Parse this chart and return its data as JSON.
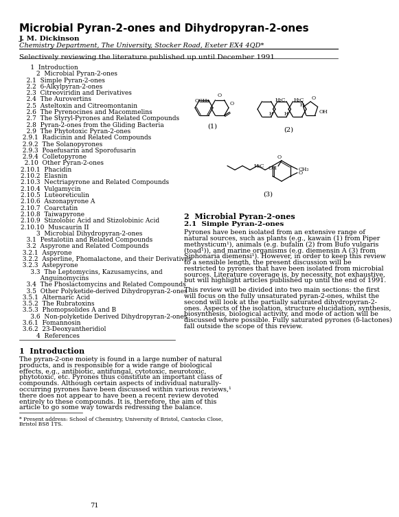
{
  "title": "Microbial Pyran-2-ones and Dihydropyran-2-ones",
  "author": "J. M. Dickinson",
  "affiliation": "Chemistry Department, The University, Stocker Road, Exeter EX4 4QD*",
  "tagline": "Selectively reviewing the literature published up until December 1991",
  "toc": [
    "     1  Introduction",
    "        2  Microbial Pyran-2-ones",
    "   2.1  Simple Pyran-2-ones",
    "   2.2  6-Alkylpyran-2-ones",
    "   2.3  Citreoviridin and Derivatives",
    "   2.4  The Aurovertins",
    "   2.5  Asteltoxin and Citreomontanin",
    "   2.6  The Pyrenocines and Macommelins",
    "   2.7  The Styryl-Pyrones and Related Compounds",
    "   2.8  Pyran-2-ones from the Gliding Bacteria",
    "   2.9  The Phytotoxic Pyran-2-ones",
    " 2.9.1  Radicinin and Related Compounds",
    " 2.9.2  The Solanopyrones",
    " 2.9.3  Poaefusarin and Sporofusarin",
    " 2.9.4  Colletopyrone",
    "  2.10  Other Pyran-2-ones",
    "2.10.1  Phacidin",
    "2.10.2  Elasnin",
    "2.10.3  Nectriapyrone and Related Compounds",
    "2.10.4  Vulgamycin",
    "2.10.5  Luteoreticulin",
    "2.10.6  Aszonapyrone A",
    "2.10.7  Coarctatin",
    "2.10.8  Taiwapyrone",
    "2.10.9  Stizolobic Acid and Stizolobinic Acid",
    "2.10.10  Muscaurin II",
    "        3  Microbial Dihydropyran-2-ones",
    "   3.1  Pestalotiin and Related Compounds",
    "   3.2  Aspyrone and Related Compounds",
    " 3.2.1  Aspyrone",
    " 3.2.2  Asperline, Phomalactone, and their Derivatives",
    " 3.2.3  Astepyrone",
    "     3.3  The Leptomycins, Kazusamycins, and",
    "          Anguinomycins",
    "   3.4  The Phoslactomycins and Related Compounds",
    "   3.5  Other Polyketide-derived Dihydropyran-2-ones",
    " 3.5.1  Alternaric Acid",
    " 3.5.2  The Rubratoxins",
    " 3.5.3  Phomopsolides A and B",
    "     3.6  Non-polyketide Derived Dihydropyran-2-ones",
    " 3.6.1  Fomannosin",
    " 3.6.2  23-Deoxyantheridiol",
    "        4  References"
  ],
  "intro_heading": "1  Introduction",
  "intro_text_lines": [
    "The pyran-2-one moiety is found in a large number of natural",
    "products, and is responsible for a wide range of biological",
    "effects, e.g., antibiotic, antifungal, cytotoxic, neurotoxic,",
    "phytotoxic, etc. Pyrones thus constitute an important class of",
    "compounds. Although certain aspects of individual naturally-",
    "occurring pyrones have been discussed within various reviews,¹",
    "there does not appear to have been a recent review devoted",
    "entirely to these compounds. It is, therefore, the aim of this",
    "article to go some way towards redressing the balance."
  ],
  "footnote_line1": "* Present address: School of Chemistry, University of Bristol, Cantocks Close,",
  "footnote_line2": "Bristol BS8 1TS.",
  "page_number": "71",
  "section2_heading": "2  Microbial Pyran-2-ones",
  "section21_heading": "2.1  Simple Pyran-2-ones",
  "section2_text_lines": [
    "Pyrones have been isolated from an extensive range of",
    "natural sources, such as plants (e.g., kawain (1) from Piper",
    "methysticum¹), animals (e.g. bufalin (2) from Bufo vulgaris",
    "(toad¹)), and marine organisms (e.g. diemensin A (3) from",
    "Siphonaria diemensi¹). However, in order to keep this review",
    "to a sensible length, the present discussion will be",
    "restricted to pyrones that have been isolated from microbial",
    "sources. Literature coverage is, by necessity, not exhaustive,",
    "but will highlight articles published up until the end of 1991."
  ],
  "section2_text2_lines": [
    "This review will be divided into two main sections: the first",
    "will focus on the fully unsaturated pyran-2-ones, whilst the",
    "second will look at the partially saturated dihydropyran-2-",
    "ones. Aspects of the isolation, structure elucidation, synthesis,",
    "biosynthesis, biological activity, and mode of action will be",
    "discussed where possible. Fully saturated pyrones (δ-lactones)",
    "fall outside the scope of this review."
  ],
  "background_color": "#ffffff"
}
